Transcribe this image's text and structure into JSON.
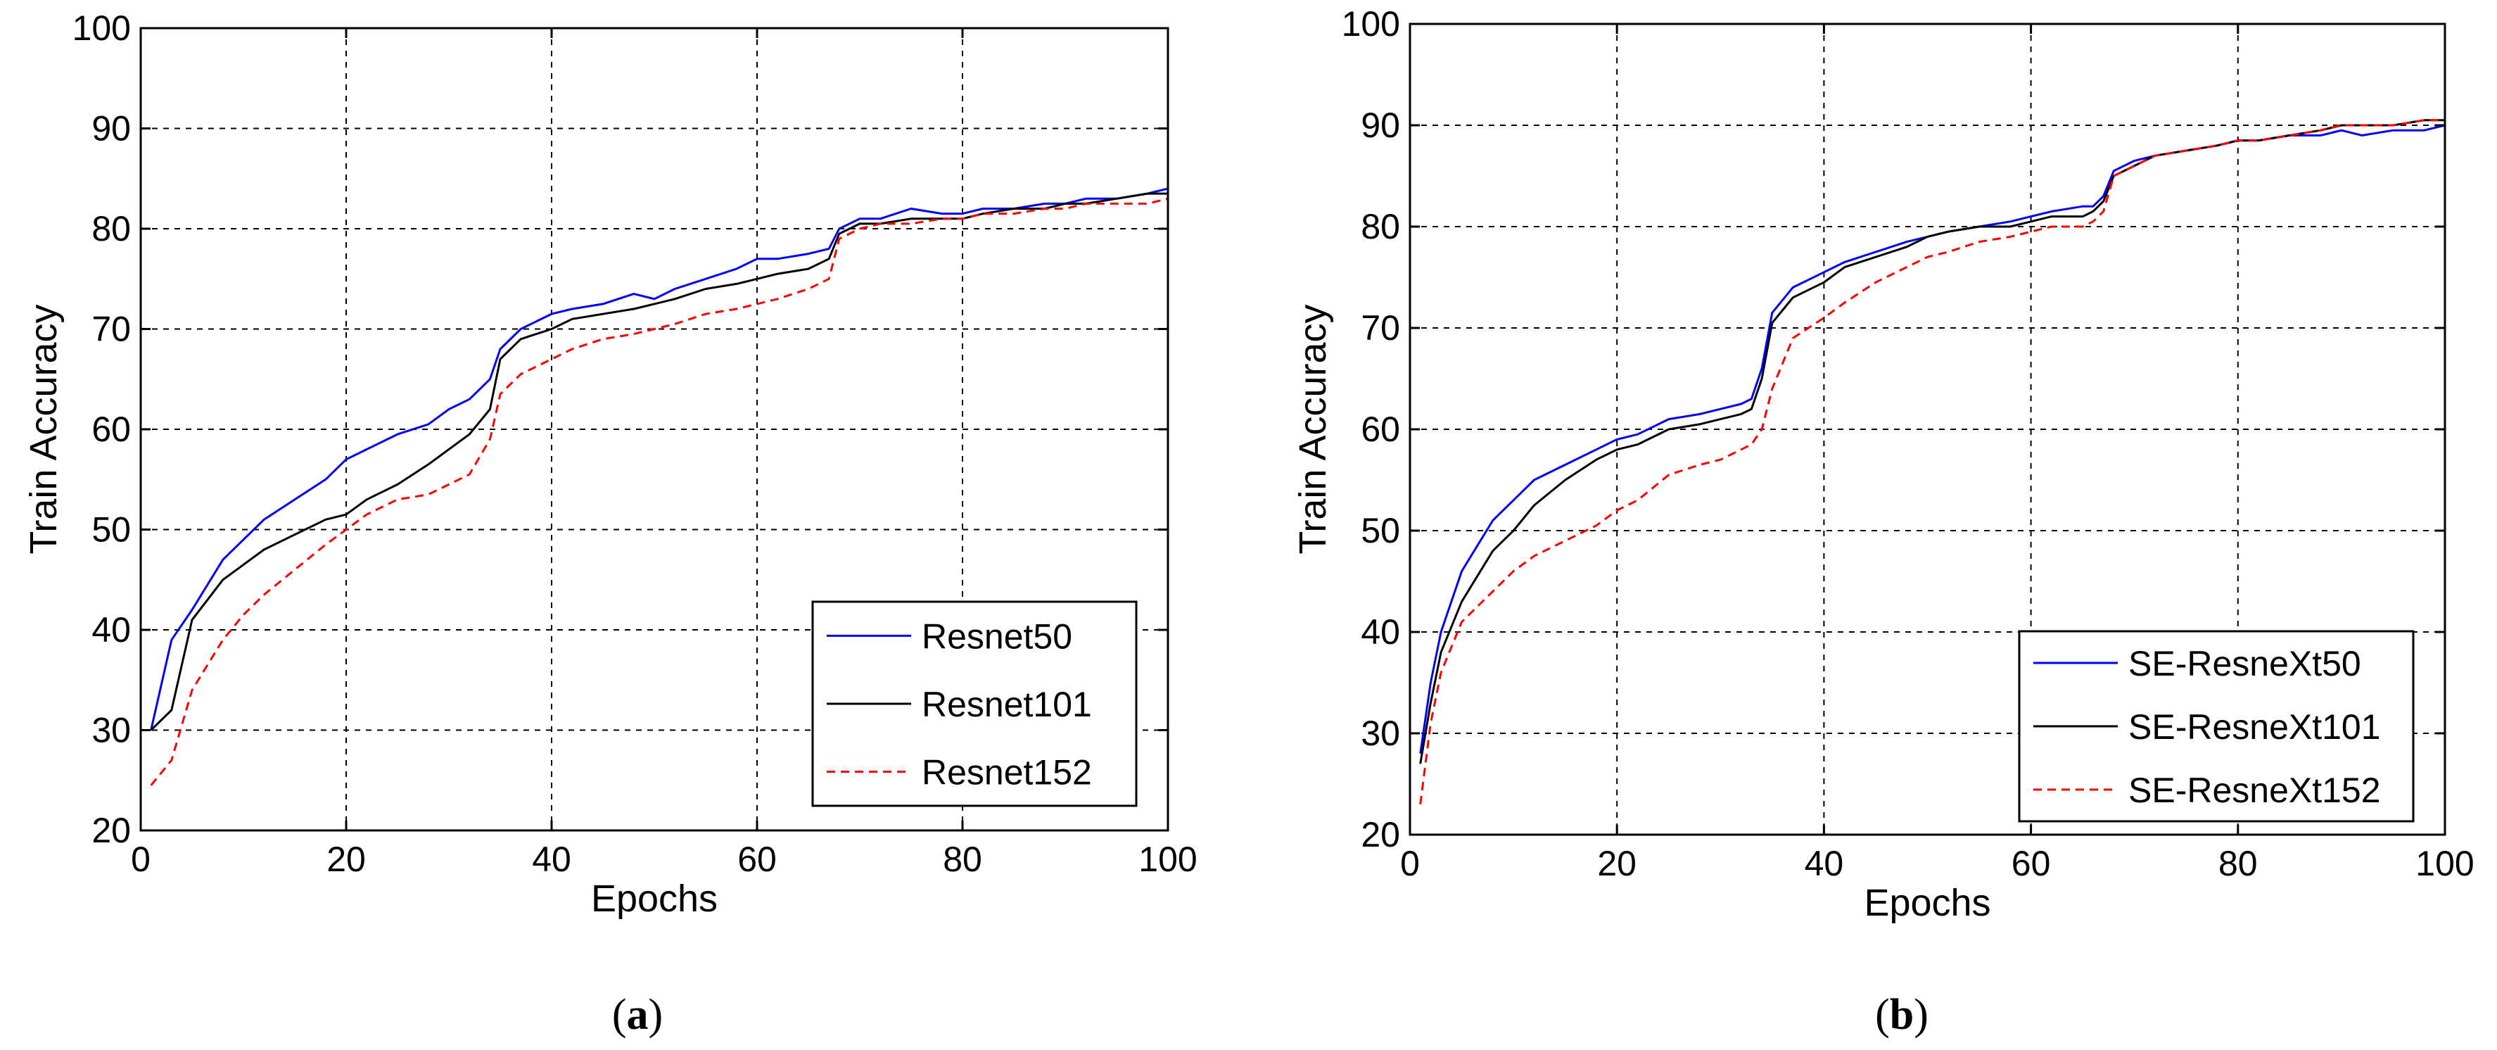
{
  "panels": [
    {
      "label_open": "(",
      "label_letter": "a",
      "label_close": ")"
    },
    {
      "label_open": "(",
      "label_letter": "b",
      "label_close": ")"
    }
  ],
  "chart_data": [
    {
      "type": "line",
      "xlabel": "Epochs",
      "ylabel": "Train Accuracy",
      "xlim": [
        0,
        100
      ],
      "ylim": [
        20,
        100
      ],
      "xticks": [
        0,
        20,
        40,
        60,
        80,
        100
      ],
      "yticks": [
        20,
        30,
        40,
        50,
        60,
        70,
        80,
        90,
        100
      ],
      "grid": true,
      "grid_style": "dashed",
      "legend_position": "bottom-right",
      "x": [
        1,
        3,
        5,
        8,
        10,
        12,
        15,
        18,
        20,
        22,
        25,
        28,
        30,
        32,
        34,
        35,
        37,
        40,
        42,
        45,
        48,
        50,
        52,
        55,
        58,
        60,
        62,
        65,
        67,
        68,
        70,
        72,
        75,
        78,
        80,
        82,
        85,
        88,
        90,
        92,
        95,
        98,
        100
      ],
      "series": [
        {
          "name": "Resnet50",
          "color": "#0000ff",
          "dash": "solid",
          "values": [
            30,
            39,
            42,
            47,
            49,
            51,
            53,
            55,
            57,
            58,
            59.5,
            60.5,
            62,
            63,
            65,
            68,
            70,
            71.5,
            72,
            72.5,
            73.5,
            73,
            74,
            75,
            76,
            77,
            77,
            77.5,
            78,
            80,
            81,
            81,
            82,
            81.5,
            81.5,
            82,
            82,
            82.5,
            82.5,
            83,
            83,
            83.5,
            84
          ]
        },
        {
          "name": "Resnet101",
          "color": "#000000",
          "dash": "solid",
          "values": [
            30,
            32,
            41,
            45,
            46.5,
            48,
            49.5,
            51,
            51.5,
            53,
            54.5,
            56.5,
            58,
            59.5,
            62,
            67,
            69,
            70,
            71,
            71.5,
            72,
            72.5,
            73,
            74,
            74.5,
            75,
            75.5,
            76,
            77,
            79.5,
            80.5,
            80.5,
            81,
            81,
            81,
            81.5,
            82,
            82,
            82.5,
            82.5,
            83,
            83.5,
            83.5
          ]
        },
        {
          "name": "Resnet152",
          "color": "#ff0000",
          "dash": "dashed",
          "values": [
            24.5,
            27,
            34,
            39,
            41.5,
            43.5,
            46,
            48.5,
            50,
            51.5,
            53,
            53.5,
            54.5,
            55.5,
            59,
            63.5,
            65.5,
            67,
            68,
            69,
            69.5,
            70,
            70.5,
            71.5,
            72,
            72.5,
            73,
            74,
            75,
            79,
            80,
            80.5,
            80.5,
            81,
            81,
            81.5,
            81.5,
            82,
            82,
            82.5,
            82.5,
            82.5,
            83
          ]
        }
      ]
    },
    {
      "type": "line",
      "xlabel": "Epochs",
      "ylabel": "Train Accuracy",
      "xlim": [
        0,
        100
      ],
      "ylim": [
        20,
        100
      ],
      "xticks": [
        0,
        20,
        40,
        60,
        80,
        100
      ],
      "yticks": [
        20,
        30,
        40,
        50,
        60,
        70,
        80,
        90,
        100
      ],
      "grid": true,
      "grid_style": "dashed",
      "legend_position": "bottom-right",
      "x": [
        1,
        2,
        3,
        5,
        8,
        10,
        12,
        15,
        18,
        20,
        22,
        25,
        28,
        30,
        32,
        33,
        34,
        35,
        37,
        40,
        42,
        45,
        48,
        50,
        52,
        55,
        58,
        60,
        62,
        65,
        66,
        67,
        68,
        70,
        72,
        75,
        78,
        80,
        82,
        85,
        88,
        90,
        92,
        95,
        98,
        100
      ],
      "series": [
        {
          "name": "SE-ResneXt50",
          "color": "#0000ff",
          "dash": "solid",
          "values": [
            28,
            35,
            40,
            46,
            51,
            53,
            55,
            56.5,
            58,
            59,
            59.5,
            61,
            61.5,
            62,
            62.5,
            63,
            66,
            71.5,
            74,
            75.5,
            76.5,
            77.5,
            78.5,
            79,
            79.5,
            80,
            80.5,
            81,
            81.5,
            82,
            82,
            83,
            85.5,
            86.5,
            87,
            87.5,
            88,
            88.5,
            88.5,
            89,
            89,
            89.5,
            89,
            89.5,
            89.5,
            90
          ]
        },
        {
          "name": "SE-ResneXt101",
          "color": "#000000",
          "dash": "solid",
          "values": [
            27,
            33,
            38,
            43,
            48,
            50,
            52.5,
            55,
            57,
            58,
            58.5,
            60,
            60.5,
            61,
            61.5,
            62,
            65,
            70.5,
            73,
            74.5,
            76,
            77,
            78,
            79,
            79.5,
            80,
            80,
            80.5,
            81,
            81,
            81.5,
            82.5,
            85,
            86,
            87,
            87.5,
            88,
            88.5,
            88.5,
            89,
            89.5,
            90,
            90,
            90,
            90.5,
            90.5
          ]
        },
        {
          "name": "SE-ResneXt152",
          "color": "#ff0000",
          "dash": "dashed",
          "values": [
            23,
            31,
            36,
            41,
            44,
            46,
            47.5,
            49,
            50.5,
            52,
            53,
            55.5,
            56.5,
            57,
            58,
            58.5,
            60,
            64,
            69,
            71,
            72.5,
            74.5,
            76,
            77,
            77.5,
            78.5,
            79,
            79.5,
            80,
            80,
            80.5,
            81.5,
            85,
            86,
            87,
            87.5,
            88,
            88.5,
            88.5,
            89,
            89.5,
            90,
            90,
            90,
            90.5,
            90.5
          ]
        }
      ]
    }
  ]
}
